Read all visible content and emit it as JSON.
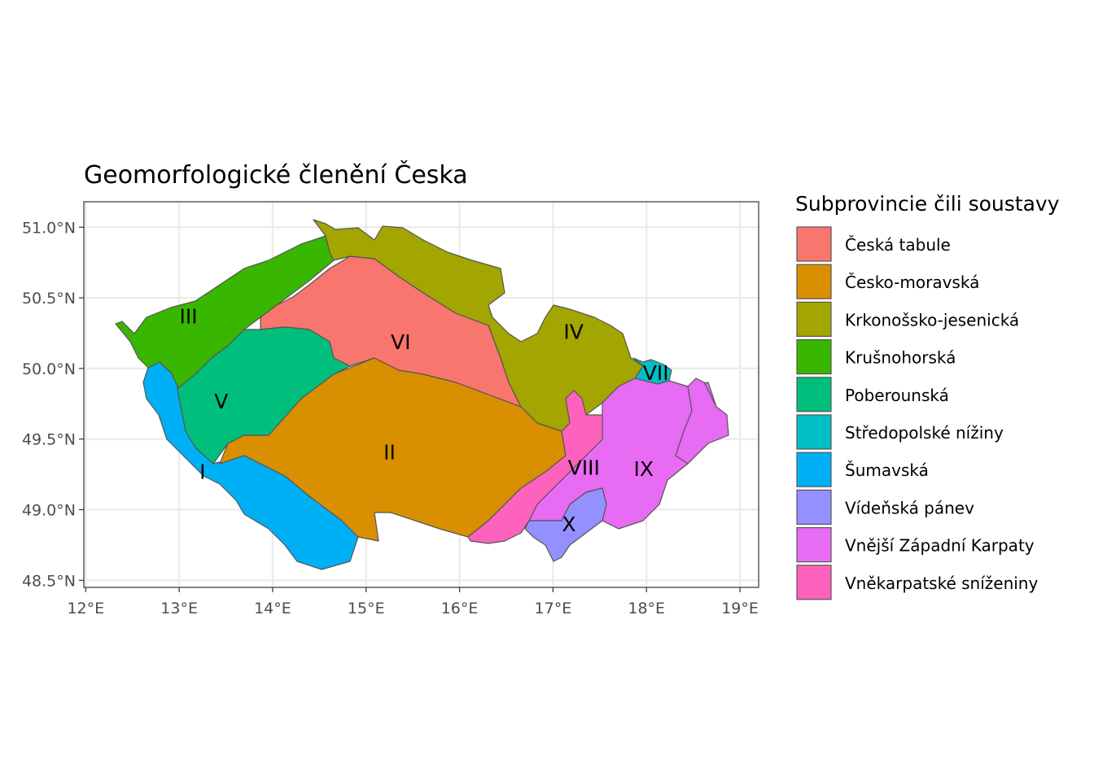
{
  "map": {
    "title": "Geomorfologické členění Česka",
    "x_axis": {
      "ticks": [
        {
          "value": 12,
          "label": "12°E"
        },
        {
          "value": 13,
          "label": "13°E"
        },
        {
          "value": 14,
          "label": "14°E"
        },
        {
          "value": 15,
          "label": "15°E"
        },
        {
          "value": 16,
          "label": "16°E"
        },
        {
          "value": 17,
          "label": "17°E"
        },
        {
          "value": 18,
          "label": "18°E"
        },
        {
          "value": 19,
          "label": "19°E"
        }
      ],
      "range": [
        11.98,
        19.2
      ]
    },
    "y_axis": {
      "ticks": [
        {
          "value": 51.0,
          "label": "51.0°N"
        },
        {
          "value": 50.5,
          "label": "50.5°N"
        },
        {
          "value": 50.0,
          "label": "50.0°N"
        },
        {
          "value": 49.5,
          "label": "49.5°N"
        },
        {
          "value": 49.0,
          "label": "49.0°N"
        },
        {
          "value": 48.5,
          "label": "48.5°N"
        }
      ],
      "range": [
        48.45,
        51.18
      ]
    },
    "grid": true,
    "legend": {
      "title": "Subprovincie čili soustavy",
      "position": "right",
      "items": [
        {
          "label": "Česká tabule",
          "color": "#F8766D"
        },
        {
          "label": "Česko-moravská",
          "color": "#D89000"
        },
        {
          "label": "Krkonošsko-jesenická",
          "color": "#A3A500"
        },
        {
          "label": "Krušnohorská",
          "color": "#39B600"
        },
        {
          "label": "Poberounská",
          "color": "#00BF7D"
        },
        {
          "label": "Středopolské nížiny",
          "color": "#00BFC4"
        },
        {
          "label": "Šumavská",
          "color": "#00B0F6"
        },
        {
          "label": "Vídeňská pánev",
          "color": "#9590FF"
        },
        {
          "label": "Vnější Západní Karpaty",
          "color": "#E76BF3"
        },
        {
          "label": "Vněkarpatské sníženiny",
          "color": "#FF62BC"
        }
      ]
    },
    "region_labels": [
      {
        "text": "I",
        "lon": 13.25,
        "lat": 49.27
      },
      {
        "text": "II",
        "lon": 15.25,
        "lat": 49.41
      },
      {
        "text": "III",
        "lon": 13.1,
        "lat": 50.37
      },
      {
        "text": "IV",
        "lon": 17.22,
        "lat": 50.26
      },
      {
        "text": "V",
        "lon": 13.45,
        "lat": 49.77
      },
      {
        "text": "VI",
        "lon": 15.37,
        "lat": 50.19
      },
      {
        "text": "VII",
        "lon": 18.1,
        "lat": 49.97
      },
      {
        "text": "VIII",
        "lon": 17.33,
        "lat": 49.3
      },
      {
        "text": "IX",
        "lon": 17.97,
        "lat": 49.29
      },
      {
        "text": "X",
        "lon": 17.17,
        "lat": 48.9
      }
    ]
  }
}
